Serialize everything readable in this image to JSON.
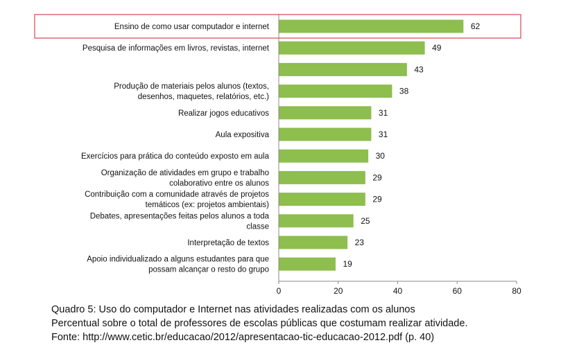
{
  "chart_data": {
    "type": "bar",
    "orientation": "horizontal",
    "categories": [
      [
        "Ensino de como usar computador e internet"
      ],
      [
        "Pesquisa de informações em livros, revistas, internet"
      ],
      [
        ""
      ],
      [
        "Produção de materiais pelos alunos (textos,",
        "desenhos, maquetes, relatórios, etc.)"
      ],
      [
        "Realizar jogos educativos"
      ],
      [
        "Aula expositiva"
      ],
      [
        "Exercícios para prática do conteúdo exposto em aula"
      ],
      [
        "Organização de atividades em grupo e trabalho",
        "colaborativo entre os alunos"
      ],
      [
        "Contribuição com a comunidade através de projetos",
        "temáticos (ex: projetos ambientais)"
      ],
      [
        "Debates, apresentações feitas pelos alunos a toda",
        "classe"
      ],
      [
        "Interpretação de textos"
      ],
      [
        "Apoio individualizado a alguns estudantes para que",
        "possam alcançar o resto do grupo"
      ]
    ],
    "values": [
      62,
      49,
      43,
      38,
      31,
      31,
      30,
      29,
      29,
      25,
      23,
      19
    ],
    "xlim": [
      0,
      80
    ],
    "xticks": [
      0,
      20,
      40,
      60,
      80
    ],
    "bar_color": "#8dbe4e",
    "highlight_index": 0,
    "highlight_color": "#d9545c",
    "grid": false
  },
  "caption": {
    "line1": "Quadro 5: Uso do computador e Internet nas atividades realizadas com os alunos",
    "line2": "Percentual sobre o total de professores de escolas públicas que costumam realizar atividade.",
    "line3": "Fonte: http://www.cetic.br/educacao/2012/apresentacao-tic-educacao-2012.pdf (p. 40)"
  }
}
